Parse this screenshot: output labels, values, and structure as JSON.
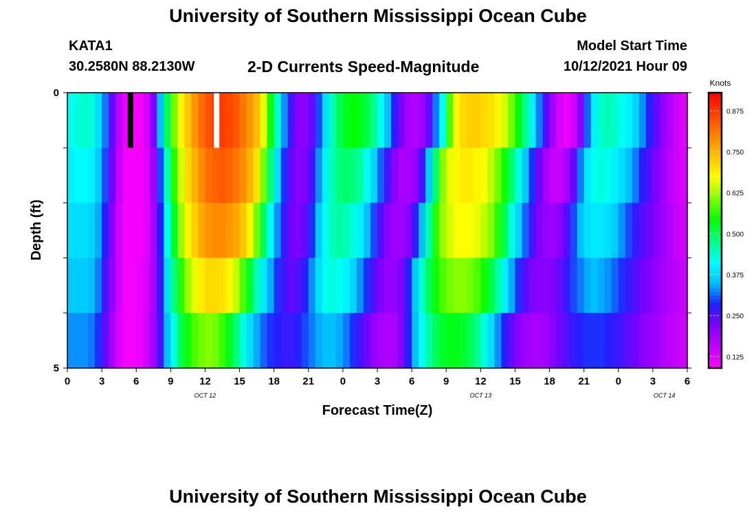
{
  "header": {
    "title": "University of Southern Mississippi Ocean Cube",
    "station_id": "KATA1",
    "station_coords": "30.2580N  88.2130W",
    "chart_title": "2-D Currents Speed-Magnitude",
    "model_start_label": "Model Start Time",
    "model_start_value": "10/12/2021 Hour 09"
  },
  "footer": {
    "title": "University of Southern Mississippi Ocean Cube"
  },
  "chart_data": {
    "type": "heatmap",
    "xlabel": "Forecast Time(Z)",
    "ylabel": "Depth (ft)",
    "colorbar_label": "Knots",
    "x_tick_labels": [
      "0",
      "3",
      "6",
      "9",
      "12",
      "15",
      "18",
      "21",
      "0",
      "3",
      "6",
      "9",
      "12",
      "15",
      "18",
      "21",
      "0",
      "3",
      "6"
    ],
    "date_labels": [
      {
        "label": "OCT 12",
        "hour": 12
      },
      {
        "label": "OCT 13",
        "hour": 36
      },
      {
        "label": "OCT 14",
        "hour": 52
      }
    ],
    "x_range_hours": [
      0,
      54
    ],
    "y_tick_labels": [
      "0",
      "5"
    ],
    "y_range_ft": [
      0,
      5
    ],
    "depth_layers": 5,
    "colorbar_ticks": [
      "0.125",
      "0.250",
      "0.375",
      "0.500",
      "0.625",
      "0.750",
      "0.875"
    ],
    "value_range_knots": [
      0.09,
      0.93
    ],
    "colorscale": [
      "#ff00ff",
      "#c000ff",
      "#8000ff",
      "#2020ff",
      "#00c0ff",
      "#00ffff",
      "#00ff80",
      "#00ff00",
      "#80ff00",
      "#ffff00",
      "#ffc000",
      "#ff8000",
      "#ff4000",
      "#ff0000"
    ],
    "speed_knots": [
      [
        0.42,
        0.43,
        0.44,
        0.43,
        0.38,
        0.32,
        0.24,
        0.16,
        0.11,
        0.1,
        0.1,
        0.13,
        0.22,
        0.35,
        0.5,
        0.6,
        0.68,
        0.73,
        0.78,
        0.82,
        0.85,
        0.87,
        0.87,
        0.86,
        0.84,
        0.81,
        0.78,
        0.74,
        0.66,
        0.55,
        0.44,
        0.33,
        0.26,
        0.21,
        0.21,
        0.24,
        0.3,
        0.38,
        0.45,
        0.5,
        0.53,
        0.54,
        0.53,
        0.51,
        0.47,
        0.42,
        0.35,
        0.28,
        0.22,
        0.18,
        0.17,
        0.19,
        0.24,
        0.32,
        0.42,
        0.58,
        0.68,
        0.71,
        0.72,
        0.72,
        0.71,
        0.7,
        0.68,
        0.65,
        0.6,
        0.54,
        0.47,
        0.4,
        0.32,
        0.25,
        0.18,
        0.13,
        0.11,
        0.14,
        0.21,
        0.31,
        0.4,
        0.44,
        0.45,
        0.44,
        0.42,
        0.4,
        0.37,
        0.33,
        0.28,
        0.24,
        0.2,
        0.17,
        0.14,
        0.12
      ],
      [
        0.4,
        0.41,
        0.41,
        0.4,
        0.36,
        0.3,
        0.23,
        0.15,
        0.1,
        0.1,
        0.1,
        0.12,
        0.19,
        0.3,
        0.45,
        0.56,
        0.65,
        0.71,
        0.75,
        0.79,
        0.82,
        0.83,
        0.84,
        0.83,
        0.81,
        0.79,
        0.75,
        0.7,
        0.6,
        0.48,
        0.38,
        0.29,
        0.24,
        0.21,
        0.22,
        0.26,
        0.33,
        0.4,
        0.45,
        0.48,
        0.49,
        0.48,
        0.46,
        0.42,
        0.37,
        0.31,
        0.26,
        0.21,
        0.18,
        0.18,
        0.2,
        0.26,
        0.36,
        0.49,
        0.61,
        0.66,
        0.68,
        0.69,
        0.69,
        0.68,
        0.67,
        0.64,
        0.6,
        0.55,
        0.49,
        0.43,
        0.36,
        0.29,
        0.23,
        0.18,
        0.15,
        0.15,
        0.18,
        0.24,
        0.32,
        0.39,
        0.42,
        0.43,
        0.42,
        0.4,
        0.38,
        0.35,
        0.32,
        0.28,
        0.25,
        0.22,
        0.19,
        0.16,
        0.14,
        0.13
      ],
      [
        0.38,
        0.38,
        0.38,
        0.37,
        0.34,
        0.28,
        0.21,
        0.14,
        0.1,
        0.1,
        0.1,
        0.12,
        0.18,
        0.28,
        0.41,
        0.52,
        0.62,
        0.68,
        0.72,
        0.76,
        0.78,
        0.79,
        0.79,
        0.78,
        0.76,
        0.73,
        0.68,
        0.6,
        0.5,
        0.41,
        0.33,
        0.27,
        0.23,
        0.22,
        0.24,
        0.29,
        0.36,
        0.42,
        0.45,
        0.46,
        0.45,
        0.43,
        0.4,
        0.35,
        0.3,
        0.25,
        0.21,
        0.19,
        0.19,
        0.21,
        0.27,
        0.35,
        0.46,
        0.56,
        0.62,
        0.65,
        0.67,
        0.67,
        0.67,
        0.66,
        0.64,
        0.61,
        0.56,
        0.5,
        0.43,
        0.37,
        0.31,
        0.26,
        0.22,
        0.2,
        0.19,
        0.21,
        0.25,
        0.3,
        0.35,
        0.38,
        0.39,
        0.39,
        0.38,
        0.36,
        0.33,
        0.3,
        0.27,
        0.25,
        0.23,
        0.21,
        0.19,
        0.17,
        0.15,
        0.14
      ],
      [
        0.36,
        0.36,
        0.36,
        0.35,
        0.32,
        0.26,
        0.2,
        0.14,
        0.1,
        0.1,
        0.11,
        0.13,
        0.18,
        0.27,
        0.38,
        0.48,
        0.56,
        0.62,
        0.66,
        0.69,
        0.71,
        0.71,
        0.7,
        0.68,
        0.64,
        0.58,
        0.52,
        0.45,
        0.39,
        0.34,
        0.29,
        0.26,
        0.24,
        0.25,
        0.28,
        0.33,
        0.38,
        0.42,
        0.43,
        0.42,
        0.4,
        0.37,
        0.33,
        0.29,
        0.25,
        0.22,
        0.2,
        0.2,
        0.22,
        0.28,
        0.36,
        0.44,
        0.5,
        0.55,
        0.58,
        0.6,
        0.61,
        0.61,
        0.6,
        0.58,
        0.55,
        0.51,
        0.46,
        0.4,
        0.34,
        0.29,
        0.25,
        0.22,
        0.21,
        0.21,
        0.22,
        0.24,
        0.27,
        0.3,
        0.32,
        0.34,
        0.35,
        0.34,
        0.33,
        0.31,
        0.29,
        0.27,
        0.25,
        0.23,
        0.22,
        0.2,
        0.18,
        0.17,
        0.16,
        0.15
      ],
      [
        0.33,
        0.33,
        0.33,
        0.32,
        0.29,
        0.24,
        0.18,
        0.13,
        0.1,
        0.1,
        0.11,
        0.14,
        0.19,
        0.26,
        0.35,
        0.43,
        0.5,
        0.55,
        0.58,
        0.6,
        0.61,
        0.6,
        0.57,
        0.53,
        0.48,
        0.43,
        0.38,
        0.34,
        0.31,
        0.29,
        0.28,
        0.27,
        0.27,
        0.28,
        0.3,
        0.32,
        0.34,
        0.35,
        0.35,
        0.34,
        0.32,
        0.29,
        0.26,
        0.23,
        0.2,
        0.18,
        0.17,
        0.18,
        0.22,
        0.28,
        0.35,
        0.41,
        0.46,
        0.5,
        0.52,
        0.53,
        0.53,
        0.52,
        0.5,
        0.47,
        0.43,
        0.38,
        0.33,
        0.28,
        0.24,
        0.21,
        0.19,
        0.18,
        0.18,
        0.19,
        0.21,
        0.23,
        0.25,
        0.27,
        0.28,
        0.29,
        0.29,
        0.29,
        0.28,
        0.27,
        0.26,
        0.24,
        0.23,
        0.21,
        0.2,
        0.19,
        0.17,
        0.16,
        0.15,
        0.14
      ]
    ],
    "markers": [
      {
        "color": "#000000",
        "hour": 5.5
      },
      {
        "color": "#ffffff",
        "hour": 13.0
      }
    ]
  }
}
